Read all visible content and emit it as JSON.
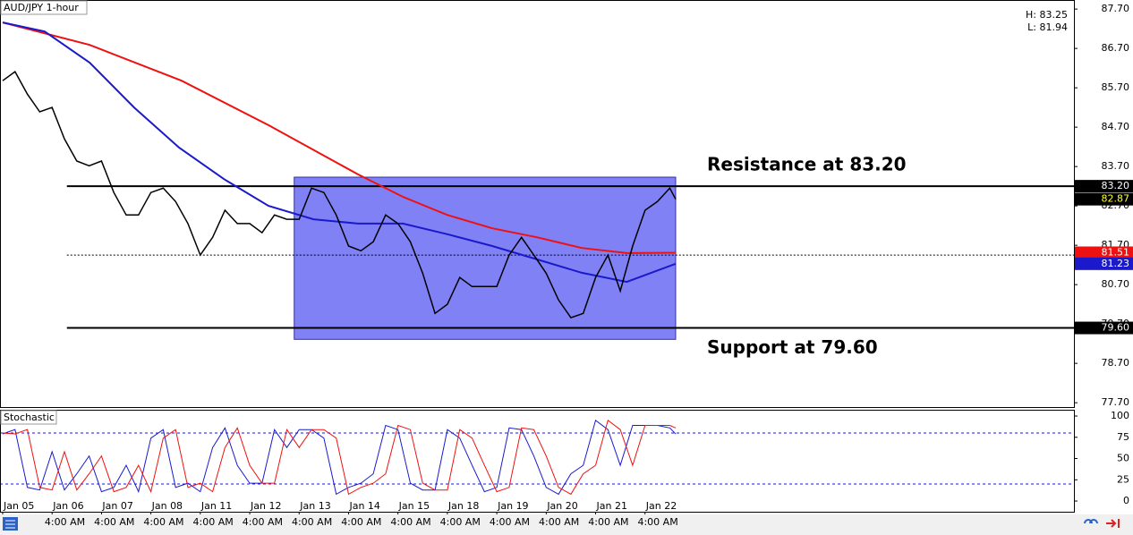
{
  "chart_data": [
    {
      "type": "line",
      "title": "AUD/JPY 1-hour",
      "high_low": [
        "H: 83.25",
        "L: 81.94"
      ],
      "xlim": [
        -0.054,
        21.68
      ],
      "ylim": [
        77.59,
        87.93
      ],
      "yticks": [
        {
          "value": 87.7,
          "label": "87.70"
        },
        {
          "value": 86.7,
          "label": "86.70"
        },
        {
          "value": 85.7,
          "label": "85.70"
        },
        {
          "value": 84.7,
          "label": "84.70"
        },
        {
          "value": 83.7,
          "label": "83.70"
        },
        {
          "value": 82.7,
          "label": "82.70"
        },
        {
          "value": 81.7,
          "label": "81.70"
        },
        {
          "value": 80.7,
          "label": "80.70"
        },
        {
          "value": 79.7,
          "label": "79.70"
        },
        {
          "value": 78.7,
          "label": "78.70"
        },
        {
          "value": 77.7,
          "label": "77.70"
        }
      ],
      "x": [
        0,
        0.25,
        0.5,
        0.75,
        1,
        1.25,
        1.5,
        1.75,
        2,
        2.25,
        2.5,
        2.75,
        3,
        3.25,
        3.5,
        3.75,
        4,
        4.25,
        4.5,
        4.75,
        5,
        5.25,
        5.5,
        5.75,
        6,
        6.25,
        6.5,
        6.75,
        7,
        7.25,
        7.5,
        7.75,
        8,
        8.25,
        8.5,
        8.75,
        9,
        9.25,
        9.5,
        9.75,
        10,
        10.25,
        10.5,
        10.75,
        11,
        11.25,
        11.5,
        11.75,
        12,
        12.25,
        12.5,
        12.75,
        13,
        13.25,
        13.5,
        13.62
      ],
      "values": [
        85.88,
        86.11,
        85.54,
        85.09,
        85.2,
        84.4,
        83.84,
        83.72,
        83.84,
        83.04,
        82.47,
        82.47,
        83.04,
        83.15,
        82.81,
        82.25,
        81.45,
        81.9,
        82.59,
        82.25,
        82.25,
        82.02,
        82.47,
        82.36,
        82.36,
        83.15,
        83.04,
        82.47,
        81.68,
        81.56,
        81.79,
        82.47,
        82.25,
        81.79,
        80.99,
        79.97,
        80.2,
        80.88,
        80.65,
        80.65,
        80.65,
        81.45,
        81.9,
        81.45,
        80.99,
        80.31,
        79.86,
        79.97,
        80.88,
        81.45,
        80.54,
        81.68,
        82.59,
        82.81,
        83.15,
        82.87
      ],
      "color": "#000000",
      "moving_averages": [
        {
          "color": "#ee1111",
          "x": [
            0,
            1.76,
            3.62,
            5.38,
            7.19,
            8.1,
            9.0,
            9.91,
            10.82,
            11.72,
            12.63,
            13.62
          ],
          "values": [
            87.36,
            86.79,
            85.88,
            84.75,
            83.5,
            82.93,
            82.47,
            82.13,
            81.9,
            81.63,
            81.5,
            81.51
          ]
        },
        {
          "color": "#1a1acc",
          "x": [
            0,
            0.85,
            1.76,
            2.66,
            3.57,
            4.48,
            5.38,
            6.29,
            7.19,
            8.1,
            9.0,
            9.91,
            10.82,
            11.72,
            12.63,
            13.62
          ],
          "values": [
            87.36,
            87.13,
            86.34,
            85.2,
            84.18,
            83.38,
            82.7,
            82.36,
            82.25,
            82.25,
            81.98,
            81.68,
            81.34,
            81.0,
            80.77,
            81.23
          ]
        }
      ],
      "box": {
        "x": [
          5.9,
          13.62
        ],
        "y": [
          79.31,
          83.43
        ],
        "color": "#7373f5"
      },
      "levels": [
        {
          "value": 83.2,
          "from": 1.3,
          "label": "Resistance at 83.20",
          "side": "above"
        },
        {
          "value": 79.6,
          "from": 1.3,
          "label": "Support at 79.60",
          "side": "below"
        }
      ],
      "dotted_level": {
        "value": 81.45,
        "from": 1.3
      },
      "price_tags": [
        {
          "value": 83.2,
          "label": "83.20",
          "color": "#000000",
          "text_color": "#ffffff"
        },
        {
          "value": 82.87,
          "label": "82.87",
          "color": "#000000",
          "text_color": "#ffff33"
        },
        {
          "value": 81.51,
          "label": "81.51",
          "color": "#ee1111",
          "text_color": "#ffffff"
        },
        {
          "value": 81.23,
          "label": "81.23",
          "color": "#1a1acc",
          "text_color": "#ffffff"
        },
        {
          "value": 79.6,
          "label": "79.60",
          "color": "#000000",
          "text_color": "#ffffff"
        }
      ]
    },
    {
      "type": "line",
      "title": "Stochastic",
      "xlim": [
        -0.054,
        21.68
      ],
      "ylim": [
        -12.6,
        107.4
      ],
      "yticks": [
        0,
        25,
        50,
        75,
        100
      ],
      "levels": [
        80,
        20
      ],
      "x": [
        0,
        0.25,
        0.5,
        0.75,
        1,
        1.25,
        1.5,
        1.75,
        2,
        2.25,
        2.5,
        2.75,
        3,
        3.25,
        3.5,
        3.75,
        4,
        4.25,
        4.5,
        4.75,
        5,
        5.25,
        5.5,
        5.75,
        6,
        6.25,
        6.5,
        6.75,
        7,
        7.25,
        7.5,
        7.75,
        8,
        8.25,
        8.5,
        8.75,
        9,
        9.25,
        9.5,
        9.75,
        10,
        10.25,
        10.5,
        10.75,
        11,
        11.25,
        11.5,
        11.75,
        12,
        12.25,
        12.5,
        12.75,
        13,
        13.25,
        13.5,
        13.62
      ],
      "series": [
        {
          "color": "#1a1acc",
          "values": [
            79,
            84,
            16,
            13,
            58,
            13,
            32,
            53,
            11,
            16,
            42,
            11,
            74,
            84,
            16,
            21,
            11,
            63,
            86,
            42,
            21,
            21,
            84,
            63,
            84,
            84,
            74,
            8,
            16,
            21,
            32,
            89,
            84,
            21,
            13,
            13,
            84,
            74,
            42,
            11,
            16,
            86,
            84,
            53,
            16,
            8,
            32,
            42,
            95,
            84,
            42,
            89,
            89,
            89,
            86,
            79
          ]
        },
        {
          "color": "#ee1111",
          "values": [
            80,
            79,
            84,
            16,
            13,
            58,
            13,
            32,
            53,
            11,
            16,
            42,
            11,
            74,
            84,
            16,
            21,
            11,
            63,
            86,
            42,
            21,
            21,
            84,
            63,
            84,
            84,
            74,
            8,
            16,
            21,
            32,
            89,
            84,
            21,
            13,
            13,
            84,
            74,
            42,
            11,
            16,
            86,
            84,
            53,
            16,
            8,
            32,
            42,
            95,
            84,
            42,
            89,
            89,
            89,
            86
          ]
        }
      ],
      "xticks": [
        {
          "value": 0,
          "label": "Jan 05"
        },
        {
          "value": 1,
          "label": "Jan 06"
        },
        {
          "value": 2,
          "label": "Jan 07"
        },
        {
          "value": 3,
          "label": "Jan 08"
        },
        {
          "value": 4,
          "label": "Jan 11"
        },
        {
          "value": 5,
          "label": "Jan 12"
        },
        {
          "value": 6,
          "label": "Jan 13"
        },
        {
          "value": 7,
          "label": "Jan 14"
        },
        {
          "value": 8,
          "label": "Jan 15"
        },
        {
          "value": 9,
          "label": "Jan 18"
        },
        {
          "value": 10,
          "label": "Jan 19"
        },
        {
          "value": 11,
          "label": "Jan 20"
        },
        {
          "value": 12,
          "label": "Jan 21"
        },
        {
          "value": 13,
          "label": "Jan 22"
        }
      ],
      "minor_xticks": [
        {
          "value": 0.85,
          "label": "4:00 AM"
        },
        {
          "value": 1.85,
          "label": "4:00 AM"
        },
        {
          "value": 2.85,
          "label": "4:00 AM"
        },
        {
          "value": 3.85,
          "label": "4:00 AM"
        },
        {
          "value": 4.85,
          "label": "4:00 AM"
        },
        {
          "value": 5.85,
          "label": "4:00 AM"
        },
        {
          "value": 6.85,
          "label": "4:00 AM"
        },
        {
          "value": 7.85,
          "label": "4:00 AM"
        },
        {
          "value": 8.85,
          "label": "4:00 AM"
        },
        {
          "value": 9.85,
          "label": "4:00 AM"
        },
        {
          "value": 10.85,
          "label": "4:00 AM"
        },
        {
          "value": 11.85,
          "label": "4:00 AM"
        },
        {
          "value": 12.85,
          "label": "4:00 AM"
        }
      ]
    }
  ]
}
